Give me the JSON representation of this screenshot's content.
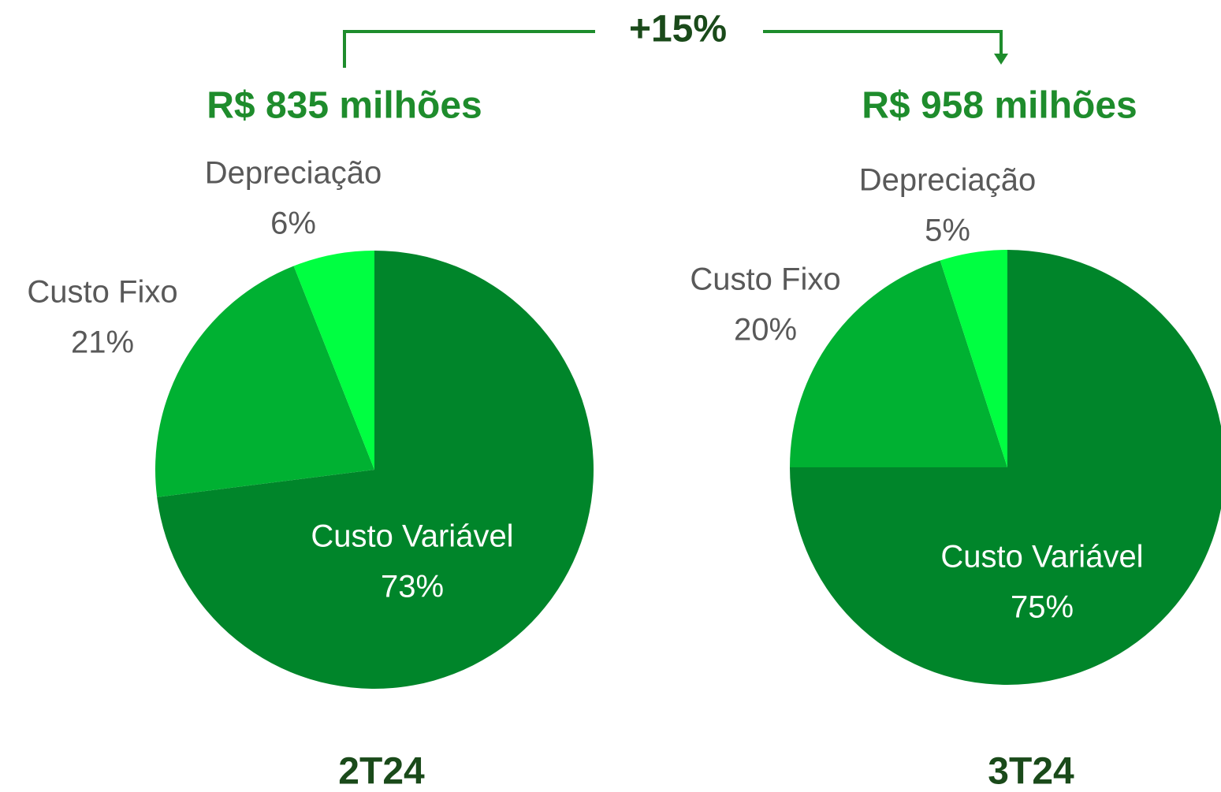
{
  "comparison": {
    "label": "+15%"
  },
  "chart_data": [
    {
      "type": "pie",
      "title": "R$ 835 milhões",
      "xlabel": "2T24",
      "categories": [
        "Custo Variável",
        "Custo Fixo",
        "Depreciação"
      ],
      "values": [
        73,
        21,
        6
      ],
      "value_labels": [
        "73%",
        "21%",
        "6%"
      ],
      "colors": [
        "#00852a",
        "#00b132",
        "#00ff41"
      ]
    },
    {
      "type": "pie",
      "title": "R$ 958 milhões",
      "xlabel": "3T24",
      "categories": [
        "Custo Variável",
        "Custo Fixo",
        "Depreciação"
      ],
      "values": [
        75,
        20,
        5
      ],
      "value_labels": [
        "75%",
        "20%",
        "5%"
      ],
      "colors": [
        "#00852a",
        "#00b132",
        "#00ff41"
      ]
    }
  ]
}
